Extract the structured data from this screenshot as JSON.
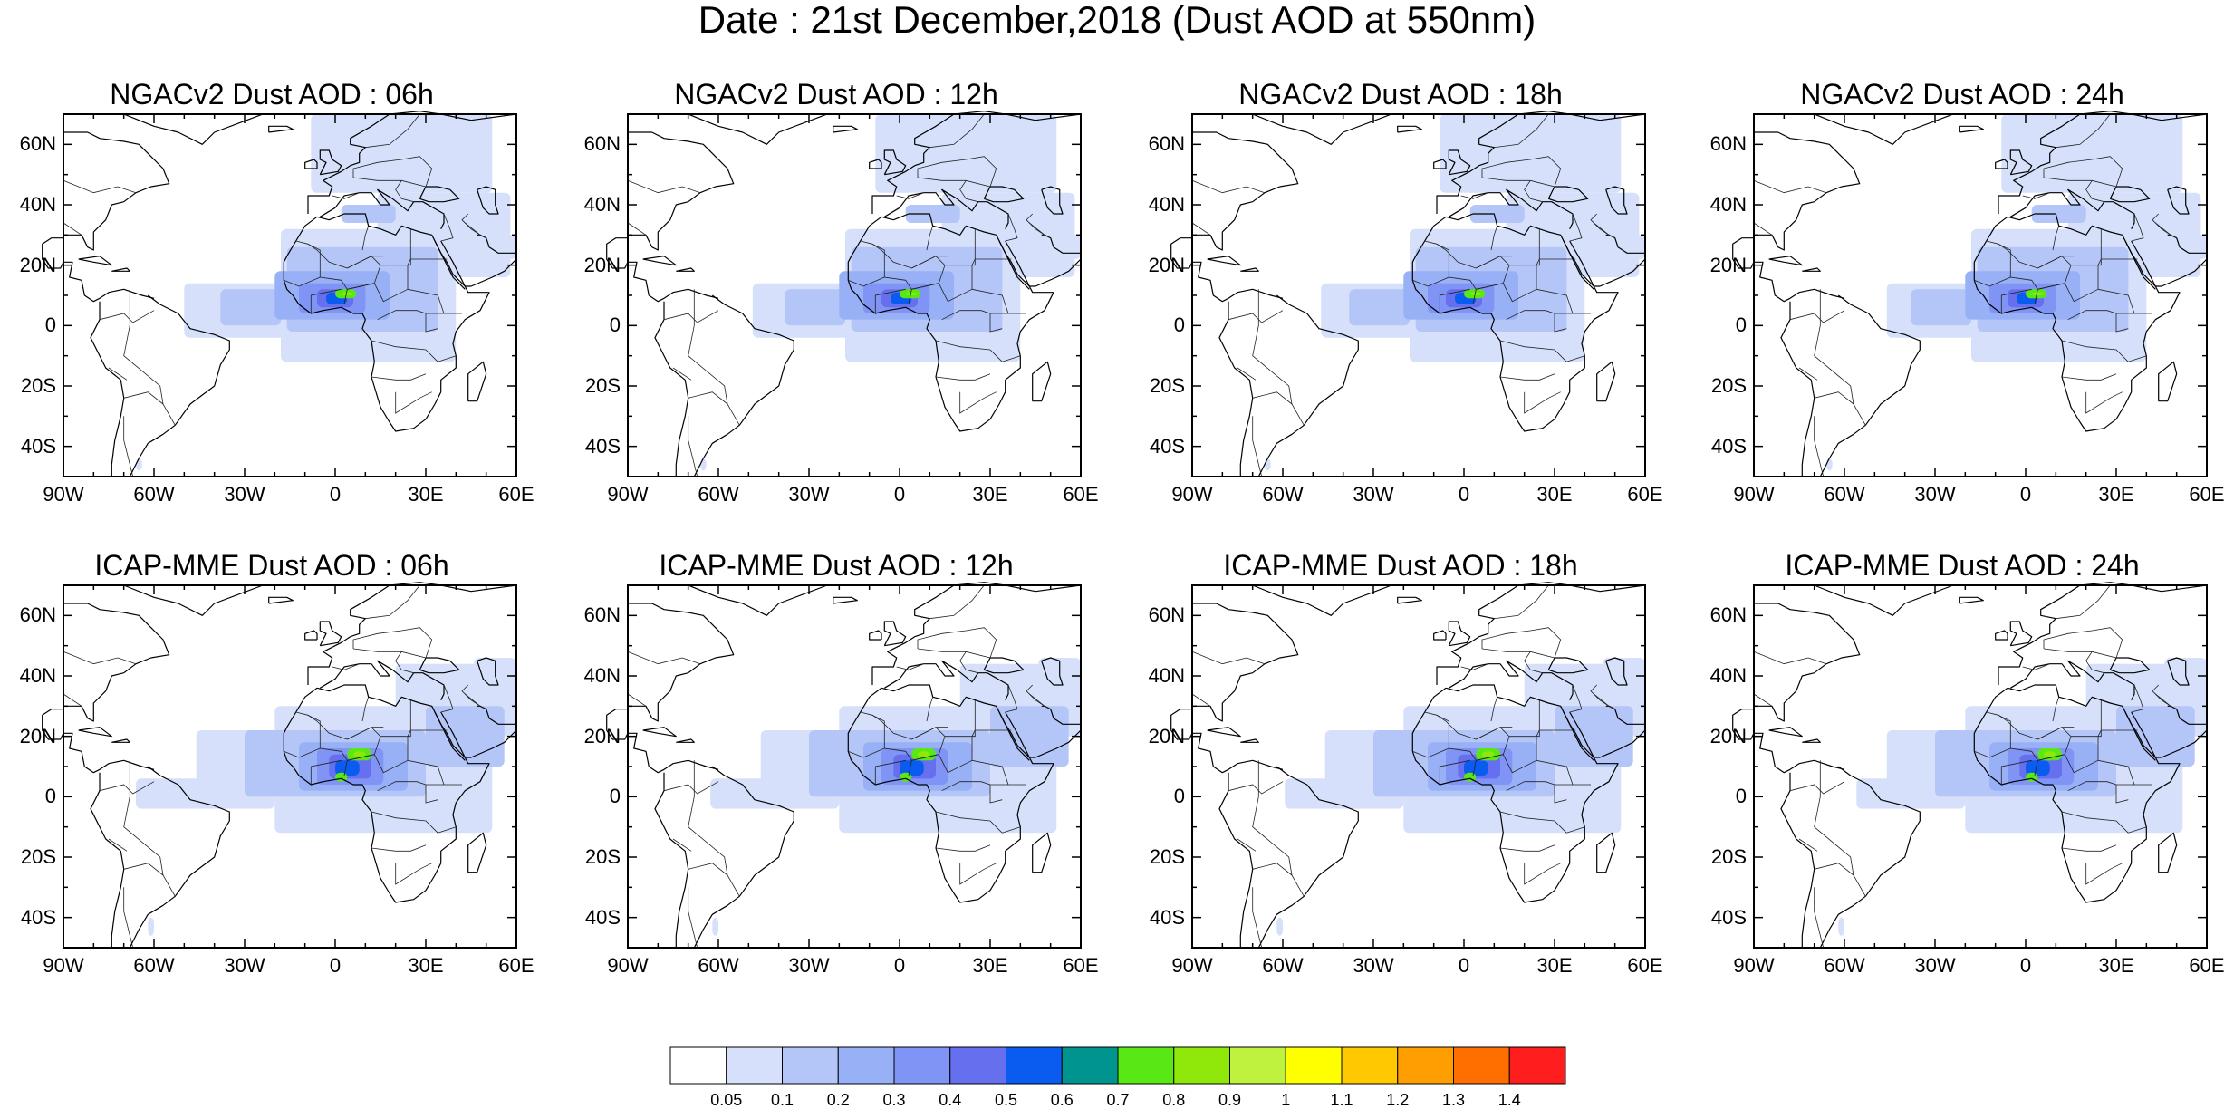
{
  "title": "Date : 21st December,2018 (Dust AOD at 550nm)",
  "lat_ticks": [
    {
      "lat": 60,
      "label": "60N"
    },
    {
      "lat": 40,
      "label": "40N"
    },
    {
      "lat": 20,
      "label": "20N"
    },
    {
      "lat": 0,
      "label": "0"
    },
    {
      "lat": -20,
      "label": "20S"
    },
    {
      "lat": -40,
      "label": "40S"
    }
  ],
  "lon_ticks": [
    {
      "lon": -90,
      "label": "90W"
    },
    {
      "lon": -60,
      "label": "60W"
    },
    {
      "lon": -30,
      "label": "30W"
    },
    {
      "lon": 0,
      "label": "0"
    },
    {
      "lon": 30,
      "label": "30E"
    },
    {
      "lon": 60,
      "label": "60E"
    }
  ],
  "map_extent": {
    "lon_min": -90,
    "lon_max": 60,
    "lat_min": -50,
    "lat_max": 70
  },
  "colorbar": {
    "colors": [
      "#ffffff",
      "#d6e0fb",
      "#b4c5f7",
      "#97b0f6",
      "#7f94f4",
      "#6670ee",
      "#0a5cf0",
      "#00948e",
      "#59e815",
      "#8fe80a",
      "#bff23e",
      "#ffff00",
      "#ffc800",
      "#ff9e00",
      "#ff6f00",
      "#ff1e1e"
    ],
    "labels": [
      "0.05",
      "0.1",
      "0.2",
      "0.3",
      "0.4",
      "0.5",
      "0.6",
      "0.7",
      "0.8",
      "0.9",
      "1",
      "1.1",
      "1.2",
      "1.3",
      "1.4"
    ]
  },
  "panels": [
    {
      "title": "NGACv2 Dust AOD : 06h",
      "model": "NGAC",
      "hour": 6
    },
    {
      "title": "NGACv2 Dust AOD : 12h",
      "model": "NGAC",
      "hour": 12
    },
    {
      "title": "NGACv2 Dust AOD : 18h",
      "model": "NGAC",
      "hour": 18
    },
    {
      "title": "NGACv2 Dust AOD : 24h",
      "model": "NGAC",
      "hour": 24
    },
    {
      "title": "ICAP-MME Dust AOD : 06h",
      "model": "ICAP",
      "hour": 6
    },
    {
      "title": "ICAP-MME Dust AOD : 12h",
      "model": "ICAP",
      "hour": 12
    },
    {
      "title": "ICAP-MME Dust AOD : 18h",
      "model": "ICAP",
      "hour": 18
    },
    {
      "title": "ICAP-MME Dust AOD : 24h",
      "model": "ICAP",
      "hour": 24
    }
  ]
}
